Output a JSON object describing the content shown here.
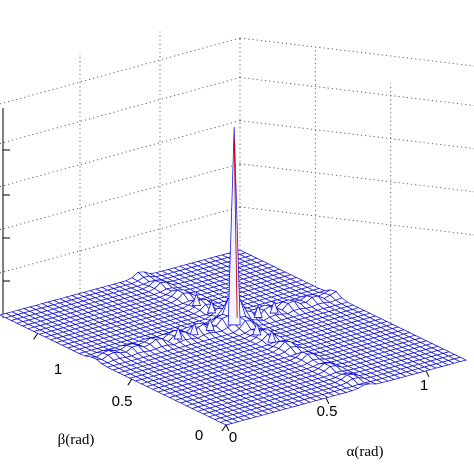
{
  "chart_data": {
    "type": "surface3d",
    "title": "",
    "xlabel": "α(rad)",
    "ylabel": "β(rad)",
    "zlabel": "",
    "x_ticks": [
      "0",
      "0.5",
      "1"
    ],
    "y_ticks": [
      "0",
      "0.5",
      "1"
    ],
    "grid": true,
    "mesh_color": "#1010d8",
    "peak": {
      "alpha": 0.7,
      "beta": 0.7
    },
    "sidelobe_ridges": [
      "alpha-cut",
      "beta-cut"
    ]
  }
}
